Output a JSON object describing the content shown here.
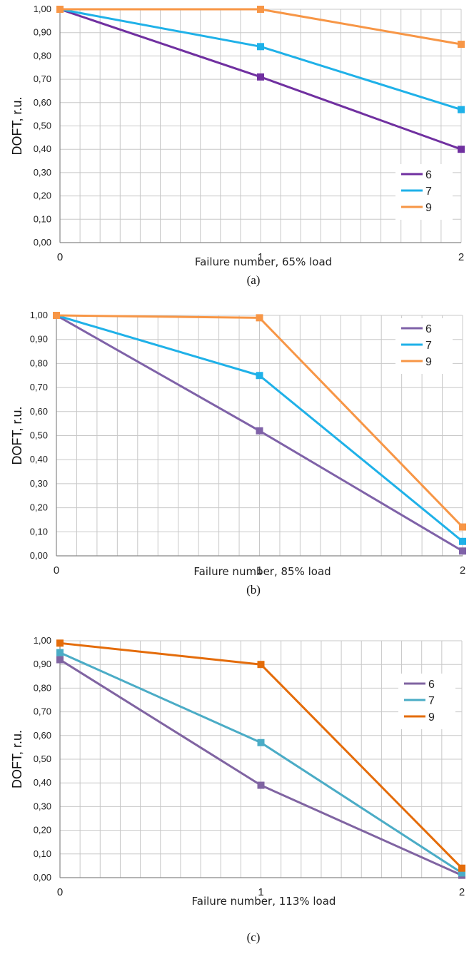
{
  "chart_data": [
    {
      "type": "line",
      "panel_label": "(a)",
      "xlabel": "Failure number, 65% load",
      "ylabel": "DOFT, r.u.",
      "x": [
        0,
        1,
        2
      ],
      "xticks": [
        "0",
        "1",
        "2"
      ],
      "ylim": [
        0,
        1
      ],
      "yticks": [
        "0,00",
        "0,10",
        "0,20",
        "0,30",
        "0,40",
        "0,50",
        "0,60",
        "0,70",
        "0,80",
        "0,90",
        "1,00"
      ],
      "grid": true,
      "legend_position": "right",
      "series": [
        {
          "name": "6",
          "color": "#7030A0",
          "values": [
            1.0,
            0.71,
            0.4
          ]
        },
        {
          "name": "7",
          "color": "#1FB1E8",
          "values": [
            1.0,
            0.84,
            0.57
          ]
        },
        {
          "name": "9",
          "color": "#F79646",
          "values": [
            1.0,
            1.0,
            0.85
          ]
        }
      ]
    },
    {
      "type": "line",
      "panel_label": "(b)",
      "xlabel": "Failure number, 85% load",
      "ylabel": "DOFT, r.u.",
      "x": [
        0,
        1,
        2
      ],
      "xticks": [
        "0",
        "1",
        "2"
      ],
      "ylim": [
        0,
        1
      ],
      "yticks": [
        "0,00",
        "0,10",
        "0,20",
        "0,30",
        "0,40",
        "0,50",
        "0,60",
        "0,70",
        "0,80",
        "0,90",
        "1,00"
      ],
      "grid": true,
      "legend_position": "top-right",
      "series": [
        {
          "name": "6",
          "color": "#7F62A8",
          "values": [
            1.0,
            0.52,
            0.02
          ]
        },
        {
          "name": "7",
          "color": "#1FB1E8",
          "values": [
            1.0,
            0.75,
            0.06
          ]
        },
        {
          "name": "9",
          "color": "#F79646",
          "values": [
            1.0,
            0.99,
            0.12
          ]
        }
      ]
    },
    {
      "type": "line",
      "panel_label": "(c)",
      "xlabel": "Failure number, 113% load",
      "ylabel": "DOFT, r.u.",
      "x": [
        0,
        1,
        2
      ],
      "xticks": [
        "0",
        "1",
        "2"
      ],
      "ylim": [
        0,
        1
      ],
      "yticks": [
        "0,00",
        "0,10",
        "0,20",
        "0,30",
        "0,40",
        "0,50",
        "0,60",
        "0,70",
        "0,80",
        "0,90",
        "1,00"
      ],
      "grid": true,
      "legend_position": "right",
      "series": [
        {
          "name": "6",
          "color": "#8064A2",
          "values": [
            0.92,
            0.39,
            0.01
          ]
        },
        {
          "name": "7",
          "color": "#4BACC6",
          "values": [
            0.95,
            0.57,
            0.02
          ]
        },
        {
          "name": "9",
          "color": "#E46C0A",
          "values": [
            0.99,
            0.9,
            0.04
          ]
        }
      ]
    }
  ]
}
